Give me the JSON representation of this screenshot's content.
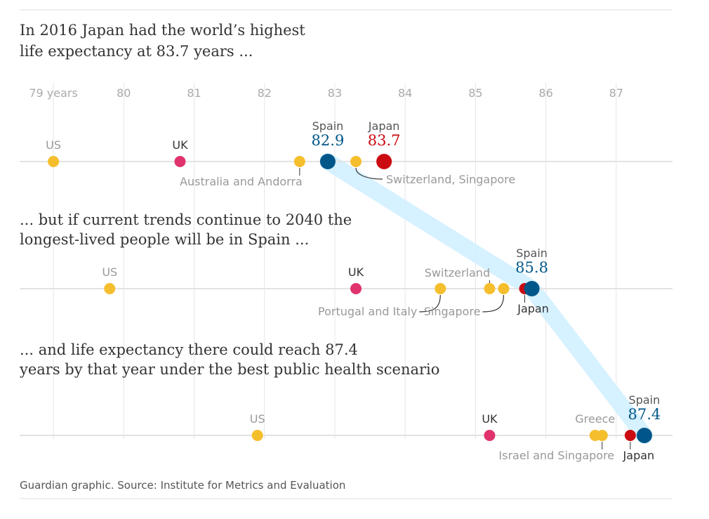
{
  "chart_data": {
    "type": "scatter",
    "x_axis": {
      "ticks": [
        79,
        80,
        81,
        82,
        83,
        84,
        85,
        86,
        87
      ],
      "tick_labels": [
        "79 years",
        "80",
        "81",
        "82",
        "83",
        "84",
        "85",
        "86",
        "87"
      ],
      "range": [
        78.55,
        87.8
      ]
    },
    "colors": {
      "highlight_blue": "#005689",
      "highlight_red": "#cc0a11",
      "uk_pink": "#e0336e",
      "others_yellow": "#f5be2c",
      "label_grey": "#999999",
      "title_text": "#333333",
      "connector_band": "#cfeeff",
      "gridline": "#e6e6e6"
    },
    "panels": [
      {
        "id": "2016",
        "title": "In 2016 Japan had the world's highest life expectancy at 83.7 years ...",
        "title_lines": [
          "In 2016 Japan had the world’s highest",
          "life expectancy at 83.7 years ..."
        ],
        "points": [
          {
            "name": "US",
            "label": "US",
            "value": 79.0,
            "color": "yellow",
            "label_pos": "above"
          },
          {
            "name": "UK",
            "label": "UK",
            "value": 80.8,
            "color": "pink",
            "label_pos": "above"
          },
          {
            "name": "Australia and Andorra",
            "label": "Australia and Andorra",
            "value": 82.5,
            "color": "yellow",
            "label_pos": "below-tick"
          },
          {
            "name": "Spain",
            "label": "Spain",
            "value": 82.9,
            "value_label": "82.9",
            "color": "blue",
            "highlight": true
          },
          {
            "name": "Switzerland, Singapore",
            "label": "Switzerland, Singapore",
            "value": 83.3,
            "color": "yellow",
            "label_pos": "leader-right"
          },
          {
            "name": "Japan",
            "label": "Japan",
            "value": 83.7,
            "value_label": "83.7",
            "color": "red",
            "highlight": true
          }
        ]
      },
      {
        "id": "2040",
        "title": "... but if current trends continue to 2040 the longest-lived people will be in Spain ...",
        "title_lines": [
          "... but if current trends continue to 2040 the",
          "longest-lived people will be in Spain ..."
        ],
        "points": [
          {
            "name": "US",
            "label": "US",
            "value": 79.8,
            "color": "yellow",
            "label_pos": "above"
          },
          {
            "name": "UK",
            "label": "UK",
            "value": 83.3,
            "color": "pink",
            "label_pos": "above"
          },
          {
            "name": "Portugal and Italy",
            "label": "Portugal and Italy",
            "value": 84.5,
            "color": "yellow",
            "label_pos": "leader-left"
          },
          {
            "name": "Switzerland",
            "label": "Switzerland",
            "value": 85.2,
            "color": "yellow",
            "label_pos": "above-tick"
          },
          {
            "name": "Singapore",
            "label": "Singapore",
            "value": 85.4,
            "color": "yellow",
            "label_pos": "leader-left"
          },
          {
            "name": "Japan",
            "label": "Japan",
            "value": 85.7,
            "color": "red",
            "label_pos": "below-tick"
          },
          {
            "name": "Spain",
            "label": "Spain",
            "value": 85.8,
            "value_label": "85.8",
            "color": "blue",
            "highlight": true
          }
        ]
      },
      {
        "id": "2040-best",
        "title": "... and life expectancy there could reach 87.4 years by that year under the best public health scenario",
        "title_lines": [
          "... and life expectancy there could reach 87.4",
          "years by that year under the best public health scenario"
        ],
        "points": [
          {
            "name": "US",
            "label": "US",
            "value": 81.9,
            "color": "yellow",
            "label_pos": "above"
          },
          {
            "name": "UK",
            "label": "UK",
            "value": 85.2,
            "color": "pink",
            "label_pos": "above"
          },
          {
            "name": "Greece",
            "label": "Greece",
            "value": 86.7,
            "color": "yellow",
            "label_pos": "above"
          },
          {
            "name": "Israel and Singapore",
            "label": "Israel and Singapore",
            "value": 86.8,
            "color": "yellow",
            "label_pos": "below-tick"
          },
          {
            "name": "Japan",
            "label": "Japan",
            "value": 87.2,
            "color": "red",
            "label_pos": "below-tick"
          },
          {
            "name": "Spain",
            "label": "Spain",
            "value": 87.4,
            "value_label": "87.4",
            "color": "blue",
            "highlight": true
          }
        ]
      }
    ],
    "connector": "Spain across panels",
    "source": "Guardian graphic. Source: Institute for Metrics and Evaluation"
  }
}
